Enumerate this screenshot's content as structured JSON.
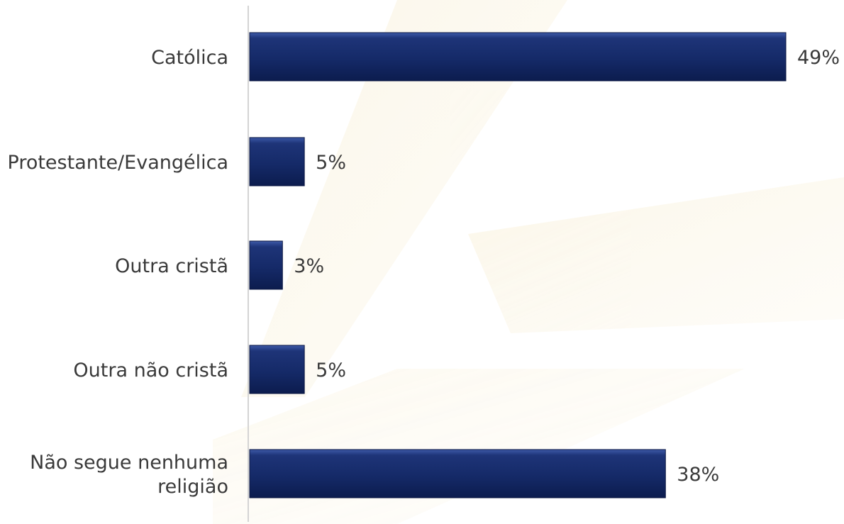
{
  "chart_data": {
    "type": "bar",
    "orientation": "horizontal",
    "categories": [
      [
        "Católica"
      ],
      [
        "Protestante/Evangélica"
      ],
      [
        "Outra cristã"
      ],
      [
        "Outra não cristã"
      ],
      [
        "Não segue nenhuma",
        "religião"
      ]
    ],
    "values": [
      49,
      5,
      3,
      5,
      38
    ],
    "value_labels": [
      "49%",
      "5%",
      "3%",
      "5%",
      "38%"
    ],
    "unit": "%",
    "xlim": [
      0,
      49
    ],
    "grid": false,
    "bar_color": "#1a2d6e",
    "title": "",
    "xlabel": "",
    "ylabel": ""
  }
}
